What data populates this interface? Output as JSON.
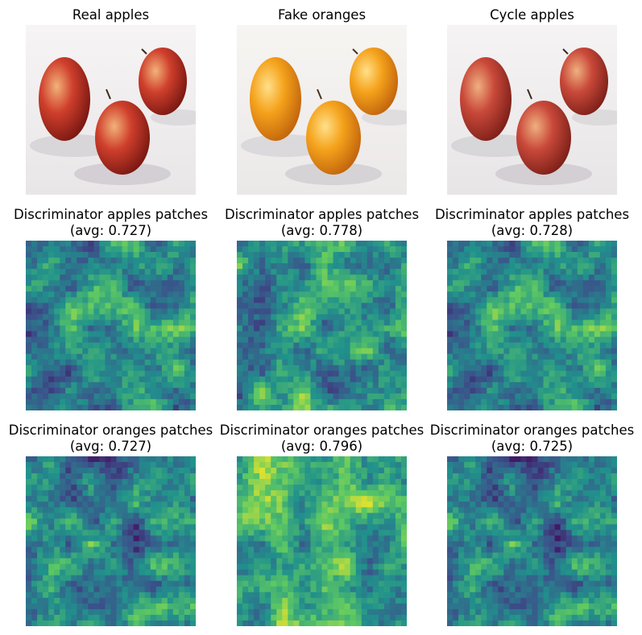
{
  "figure": {
    "row1": {
      "titles": [
        "Real apples",
        "Fake oranges",
        "Cycle apples"
      ],
      "images": [
        "three-red-apples-photo",
        "three-orange-tinted-apples-photo",
        "three-red-apples-reconstructed-photo"
      ]
    },
    "row2": {
      "title": "Discriminator apples patches",
      "avgs": [
        "(avg: 0.727)",
        "(avg: 0.778)",
        "(avg: 0.728)"
      ]
    },
    "row3": {
      "title": "Discriminator oranges patches",
      "avgs": [
        "(avg: 0.727)",
        "(avg: 0.796)",
        "(avg: 0.725)"
      ]
    }
  },
  "chart_data": {
    "type": "heatmap",
    "colormap": "viridis",
    "grid_size": 30,
    "axes": "off",
    "panels": [
      {
        "row": 2,
        "col": 1,
        "title": "Discriminator apples patches",
        "avg": 0.727
      },
      {
        "row": 2,
        "col": 2,
        "title": "Discriminator apples patches",
        "avg": 0.778
      },
      {
        "row": 2,
        "col": 3,
        "title": "Discriminator apples patches",
        "avg": 0.728
      },
      {
        "row": 3,
        "col": 1,
        "title": "Discriminator oranges patches",
        "avg": 0.727
      },
      {
        "row": 3,
        "col": 2,
        "title": "Discriminator oranges patches",
        "avg": 0.796
      },
      {
        "row": 3,
        "col": 3,
        "title": "Discriminator oranges patches",
        "avg": 0.725
      }
    ]
  }
}
